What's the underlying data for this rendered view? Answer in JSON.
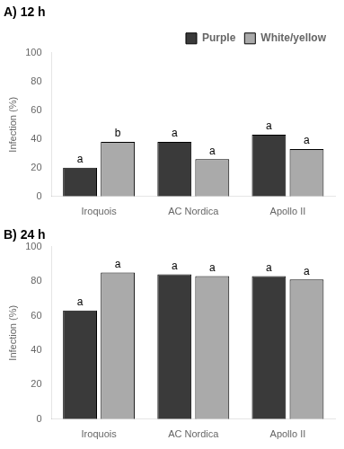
{
  "chart_data": [
    {
      "type": "bar",
      "title": "A) 12 h",
      "categories": [
        "Iroquois",
        "AC Nordica",
        "Apollo II"
      ],
      "series": [
        {
          "name": "Purple",
          "color": "#3a3a3a",
          "values": [
            20,
            38,
            43
          ],
          "annotations": [
            "a",
            "a",
            "a"
          ]
        },
        {
          "name": "White/yellow",
          "color": "#aaaaaa",
          "values": [
            38,
            26,
            33
          ],
          "annotations": [
            "b",
            "a",
            "a"
          ]
        }
      ],
      "y_label": "Infection (%)",
      "ylim": [
        0,
        100
      ],
      "yticks": [
        0,
        20,
        40,
        60,
        80,
        100
      ],
      "grid": false,
      "legend": "upper right"
    },
    {
      "type": "bar",
      "title": "B) 24 h",
      "categories": [
        "Iroquois",
        "AC Nordica",
        "Apollo II"
      ],
      "series": [
        {
          "color": "#3a3a3a",
          "values": [
            63,
            84,
            83
          ],
          "annotations": [
            "a",
            "a",
            "a"
          ]
        },
        {
          "color": "#aaaaaa",
          "values": [
            85,
            83,
            81
          ],
          "annotations": [
            "a",
            "a",
            "a"
          ]
        }
      ],
      "y_label": "Infection (%)",
      "ylim": [
        0,
        100
      ],
      "yticks": [
        0,
        20,
        40,
        60,
        80,
        100
      ],
      "grid": false
    }
  ]
}
